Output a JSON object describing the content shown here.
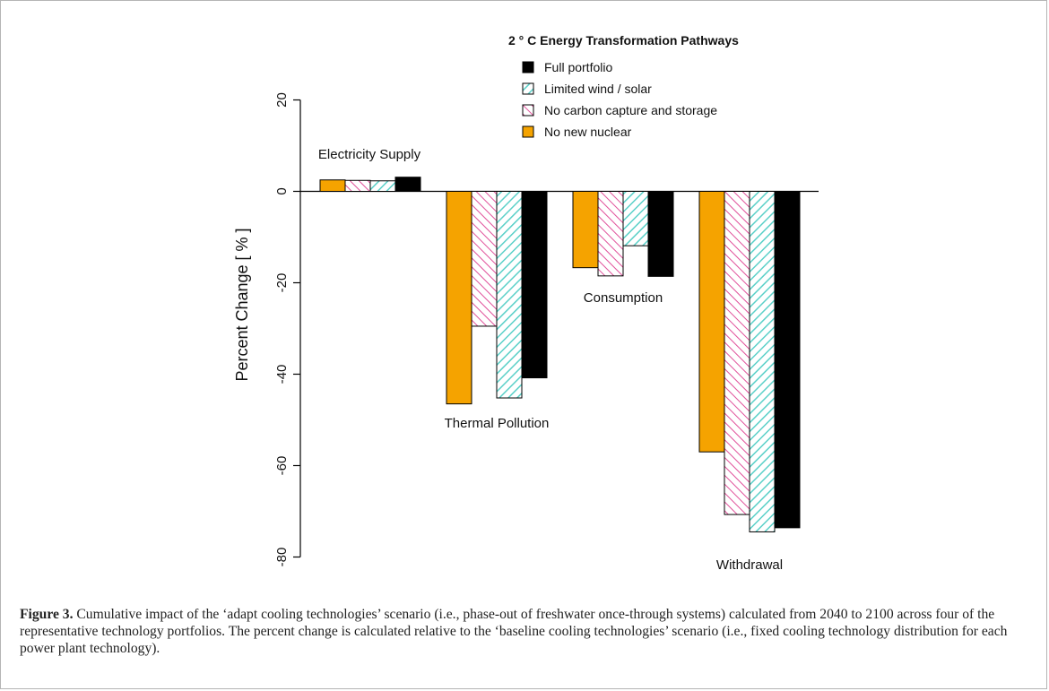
{
  "chart_data": {
    "type": "bar",
    "legend_title": "2 ° C  Energy Transformation Pathways",
    "ylabel": "Percent Change [ % ]",
    "ylim": [
      -80,
      20
    ],
    "yticks": [
      20,
      0,
      -20,
      -40,
      -60,
      -80
    ],
    "legend_position": "top-right",
    "series": [
      {
        "name": "Full portfolio",
        "fill": "#000000",
        "pattern": "solid"
      },
      {
        "name": "Limited wind / solar",
        "fill": "#5ad0c8",
        "pattern": "hatch"
      },
      {
        "name": "No carbon capture and storage",
        "fill": "#e0509a",
        "pattern": "hatch"
      },
      {
        "name": "No new nuclear",
        "fill": "#f5a300",
        "pattern": "solid"
      }
    ],
    "bar_order": [
      "No new nuclear",
      "No carbon capture and storage",
      "Limited wind / solar",
      "Full portfolio"
    ],
    "groups": [
      {
        "label": "Electricity Supply",
        "values": [
          2.5,
          2.4,
          2.3,
          3.1
        ]
      },
      {
        "label": "Thermal Pollution",
        "values": [
          -46.5,
          -29.5,
          -45.2,
          -40.8
        ]
      },
      {
        "label": "Consumption",
        "values": [
          -16.7,
          -18.5,
          -11.9,
          -18.6
        ]
      },
      {
        "label": "Withdrawal",
        "values": [
          -57.0,
          -70.7,
          -74.5,
          -73.6
        ]
      }
    ]
  },
  "caption": {
    "label": "Figure 3.",
    "text": " Cumulative impact of the ‘adapt cooling technologies’ scenario (i.e., phase-out of freshwater once-through systems) calculated from 2040 to 2100 across four of the representative technology portfolios. The percent change is calculated relative to the ‘baseline cooling technologies’ scenario (i.e., fixed cooling technology distribution for each power plant technology)."
  }
}
